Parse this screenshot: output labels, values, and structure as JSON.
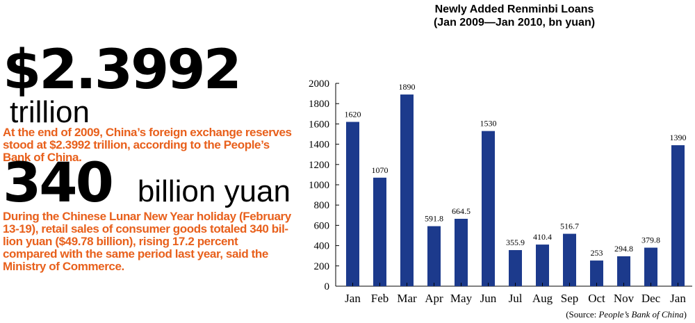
{
  "stats": [
    {
      "value": "$2.3992",
      "unit": "trillion",
      "description": "At the end of 2009, China’s foreign exchange reserves stood at $2.3992 trillion, according to the People’s Bank of China."
    },
    {
      "value": "340",
      "unit": "billion yuan",
      "description": "During the Chinese Lunar New Year holiday (February 13-19), retail sales of consumer goods totaled 340 bil-lion yuan ($49.78 billion), rising 17.2 percent compared with the same period last year, said the Ministry of Commerce."
    }
  ],
  "chart_data": {
    "type": "bar",
    "title_line1": "Newly Added Renminbi Loans",
    "title_line2": "(Jan 2009—Jan 2010, bn yuan)",
    "categories": [
      "Jan",
      "Feb",
      "Mar",
      "Apr",
      "May",
      "Jun",
      "Jul",
      "Aug",
      "Sep",
      "Oct",
      "Nov",
      "Dec",
      "Jan"
    ],
    "values": [
      1620,
      1070,
      1890,
      591.8,
      664.5,
      1530,
      355.9,
      410.4,
      516.7,
      253,
      294.8,
      379.8,
      1390
    ],
    "value_labels": [
      "1620",
      "1070",
      "1890",
      "591.8",
      "664.5",
      "1530",
      "355.9",
      "410.4",
      "516.7",
      "253",
      "294.8",
      "379.8",
      "1390"
    ],
    "ylim": [
      0,
      2000
    ],
    "yticks": [
      0,
      200,
      400,
      600,
      800,
      1000,
      1200,
      1400,
      1600,
      1800,
      2000
    ],
    "grid": false,
    "bar_color": "#1c3a8c",
    "source_prefix": "(Source: ",
    "source_name": "People’s Bank of China",
    "source_suffix": ")"
  }
}
